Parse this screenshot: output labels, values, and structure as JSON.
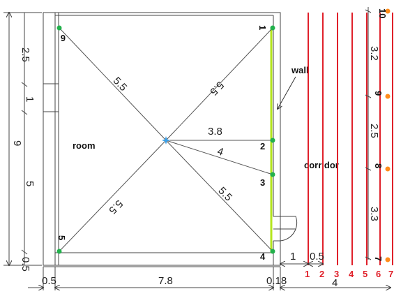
{
  "labels": {
    "room": "room",
    "corridor": "corridor",
    "wall": "wall"
  },
  "distances": {
    "d1": "5.5",
    "d2": "5.5",
    "d3": "3.8",
    "d4": "4",
    "d5": "5.5",
    "d6": "5.5"
  },
  "room_points": [
    "1",
    "2",
    "3",
    "4",
    "5",
    "6"
  ],
  "corridor_numbers": [
    "1",
    "2",
    "3",
    "4",
    "5",
    "6",
    "7"
  ],
  "right_points": [
    "10",
    "9",
    "8",
    "7"
  ],
  "right_dims": [
    "3.2",
    "2.5",
    "3.3"
  ],
  "left_dims": {
    "total": "9",
    "segments": [
      "2.5",
      "1",
      "5",
      "0.5"
    ]
  },
  "bottom_dims": {
    "a": "0.5",
    "b": "7.8",
    "c": "0.18",
    "d": "4",
    "e": "1",
    "f": "0.5"
  },
  "colors": {
    "lines": "#555555",
    "wall_highlight": "#b5e61d",
    "corridor_lines": "#e0202a",
    "room_points": "#22b14c",
    "right_points": "#ff8c1a",
    "center": "#3aa0e8"
  }
}
